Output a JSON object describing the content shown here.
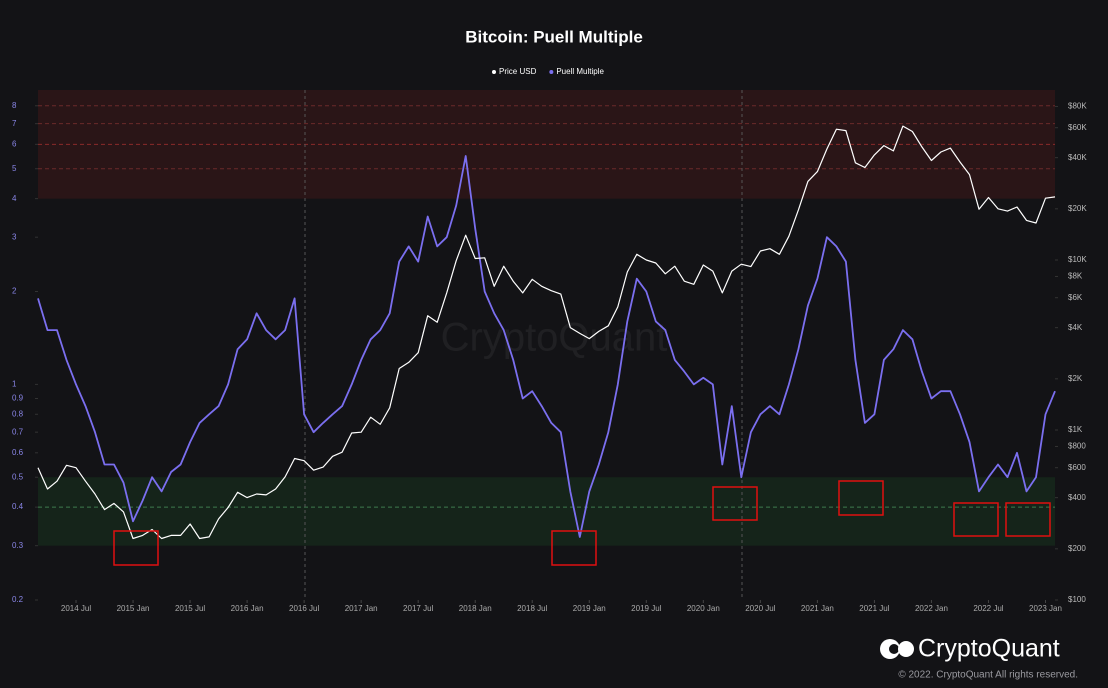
{
  "chart_data": {
    "type": "line",
    "title": "Bitcoin: Puell Multiple",
    "x": [
      "2014-03",
      "2014-04",
      "2014-05",
      "2014-06",
      "2014-07",
      "2014-08",
      "2014-09",
      "2014-10",
      "2014-11",
      "2014-12",
      "2015-01",
      "2015-02",
      "2015-03",
      "2015-04",
      "2015-05",
      "2015-06",
      "2015-07",
      "2015-08",
      "2015-09",
      "2015-10",
      "2015-11",
      "2015-12",
      "2016-01",
      "2016-02",
      "2016-03",
      "2016-04",
      "2016-05",
      "2016-06",
      "2016-07",
      "2016-08",
      "2016-09",
      "2016-10",
      "2016-11",
      "2016-12",
      "2017-01",
      "2017-02",
      "2017-03",
      "2017-04",
      "2017-05",
      "2017-06",
      "2017-07",
      "2017-08",
      "2017-09",
      "2017-10",
      "2017-11",
      "2017-12",
      "2018-01",
      "2018-02",
      "2018-03",
      "2018-04",
      "2018-05",
      "2018-06",
      "2018-07",
      "2018-08",
      "2018-09",
      "2018-10",
      "2018-11",
      "2018-12",
      "2019-01",
      "2019-02",
      "2019-03",
      "2019-04",
      "2019-05",
      "2019-06",
      "2019-07",
      "2019-08",
      "2019-09",
      "2019-10",
      "2019-11",
      "2019-12",
      "2020-01",
      "2020-02",
      "2020-03",
      "2020-04",
      "2020-05",
      "2020-06",
      "2020-07",
      "2020-08",
      "2020-09",
      "2020-10",
      "2020-11",
      "2020-12",
      "2021-01",
      "2021-02",
      "2021-03",
      "2021-04",
      "2021-05",
      "2021-06",
      "2021-07",
      "2021-08",
      "2021-09",
      "2021-10",
      "2021-11",
      "2021-12",
      "2022-01",
      "2022-02",
      "2022-03",
      "2022-04",
      "2022-05",
      "2022-06",
      "2022-07",
      "2022-08",
      "2022-09",
      "2022-10",
      "2022-11",
      "2022-12",
      "2023-01",
      "2023-02"
    ],
    "series": [
      {
        "name": "Price USD",
        "color": "#ffffff",
        "axis": "y2",
        "values": [
          600,
          450,
          500,
          620,
          600,
          500,
          420,
          340,
          370,
          330,
          230,
          240,
          260,
          230,
          240,
          240,
          280,
          230,
          235,
          300,
          350,
          430,
          400,
          420,
          415,
          450,
          530,
          680,
          660,
          580,
          605,
          700,
          740,
          960,
          970,
          1190,
          1080,
          1350,
          2300,
          2500,
          2850,
          4700,
          4300,
          6400,
          9900,
          14000,
          10200,
          10300,
          7000,
          9200,
          7500,
          6400,
          7700,
          7000,
          6600,
          6300,
          4000,
          3700,
          3450,
          3800,
          4100,
          5300,
          8500,
          10800,
          10000,
          9600,
          8300,
          9200,
          7500,
          7200,
          9350,
          8600,
          6400,
          8600,
          9450,
          9150,
          11300,
          11650,
          10800,
          13800,
          19700,
          29000,
          33100,
          45000,
          58800,
          57700,
          37300,
          35000,
          41500,
          47100,
          43800,
          61300,
          57000,
          46300,
          38500,
          43200,
          45500,
          37700,
          31800,
          19900,
          23300,
          20000,
          19400,
          20500,
          17100,
          16500,
          23100,
          23500
        ]
      },
      {
        "name": "Puell Multiple",
        "color": "#7b6ff0",
        "values": [
          1.9,
          1.5,
          1.5,
          1.2,
          1.0,
          0.85,
          0.7,
          0.55,
          0.55,
          0.48,
          0.36,
          0.42,
          0.5,
          0.45,
          0.52,
          0.55,
          0.65,
          0.75,
          0.8,
          0.85,
          1.0,
          1.3,
          1.4,
          1.7,
          1.5,
          1.4,
          1.5,
          1.9,
          0.8,
          0.7,
          0.75,
          0.8,
          0.85,
          1.0,
          1.2,
          1.4,
          1.5,
          1.7,
          2.5,
          2.8,
          2.5,
          3.5,
          2.8,
          3.0,
          3.8,
          5.5,
          3.2,
          2.0,
          1.7,
          1.5,
          1.2,
          0.9,
          0.95,
          0.85,
          0.75,
          0.7,
          0.45,
          0.32,
          0.45,
          0.55,
          0.7,
          1.0,
          1.6,
          2.2,
          2.0,
          1.6,
          1.5,
          1.2,
          1.1,
          1.0,
          1.05,
          1.0,
          0.55,
          0.85,
          0.5,
          0.7,
          0.8,
          0.85,
          0.8,
          1.0,
          1.3,
          1.8,
          2.2,
          3.0,
          2.8,
          2.5,
          1.2,
          0.75,
          0.8,
          1.2,
          1.3,
          1.5,
          1.4,
          1.1,
          0.9,
          0.95,
          0.95,
          0.8,
          0.65,
          0.45,
          0.5,
          0.55,
          0.5,
          0.6,
          0.45,
          0.5,
          0.8,
          0.95
        ]
      }
    ],
    "xlim": [
      "2014-03",
      "2023-02"
    ],
    "xticks": [
      {
        "value": "2014-07",
        "label": "2014 Jul"
      },
      {
        "value": "2015-01",
        "label": "2015 Jan"
      },
      {
        "value": "2015-07",
        "label": "2015 Jul"
      },
      {
        "value": "2016-01",
        "label": "2016 Jan"
      },
      {
        "value": "2016-07",
        "label": "2016 Jul"
      },
      {
        "value": "2017-01",
        "label": "2017 Jan"
      },
      {
        "value": "2017-07",
        "label": "2017 Jul"
      },
      {
        "value": "2018-01",
        "label": "2018 Jan"
      },
      {
        "value": "2018-07",
        "label": "2018 Jul"
      },
      {
        "value": "2019-01",
        "label": "2019 Jan"
      },
      {
        "value": "2019-07",
        "label": "2019 Jul"
      },
      {
        "value": "2020-01",
        "label": "2020 Jan"
      },
      {
        "value": "2020-07",
        "label": "2020 Jul"
      },
      {
        "value": "2021-01",
        "label": "2021 Jan"
      },
      {
        "value": "2021-07",
        "label": "2021 Jul"
      },
      {
        "value": "2022-01",
        "label": "2022 Jan"
      },
      {
        "value": "2022-07",
        "label": "2022 Jul"
      },
      {
        "value": "2023-01",
        "label": "2023 Jan"
      }
    ],
    "ylim": [
      0.2,
      9
    ],
    "y_log": true,
    "yticks": [
      0.2,
      0.3,
      0.4,
      0.5,
      0.6,
      0.7,
      0.8,
      0.9,
      1,
      2,
      3,
      4,
      5,
      6,
      7,
      8
    ],
    "y2lim": [
      100,
      100000
    ],
    "y2_log": true,
    "y2ticks": [
      {
        "value": 100,
        "label": "$100"
      },
      {
        "value": 200,
        "label": "$200"
      },
      {
        "value": 400,
        "label": "$400"
      },
      {
        "value": 600,
        "label": "$600"
      },
      {
        "value": 800,
        "label": "$800"
      },
      {
        "value": 1000,
        "label": "$1K"
      },
      {
        "value": 2000,
        "label": "$2K"
      },
      {
        "value": 4000,
        "label": "$4K"
      },
      {
        "value": 6000,
        "label": "$6K"
      },
      {
        "value": 8000,
        "label": "$8K"
      },
      {
        "value": 10000,
        "label": "$10K"
      },
      {
        "value": 20000,
        "label": "$20K"
      },
      {
        "value": 40000,
        "label": "$40K"
      },
      {
        "value": 60000,
        "label": "$60K"
      },
      {
        "value": 80000,
        "label": "$80K"
      }
    ],
    "zones": [
      {
        "from": 4,
        "to": 9,
        "color": "#2a1517"
      },
      {
        "from": 0.3,
        "to": 0.5,
        "color": "#15241a"
      }
    ],
    "reference_lines": [
      {
        "value": 0.4,
        "color": "#3d7a4d"
      },
      {
        "value": 5,
        "color": "#6a2a2a"
      },
      {
        "value": 6,
        "color": "#8a2a2a"
      },
      {
        "value": 7,
        "color": "#6a2a2a"
      },
      {
        "value": 8,
        "color": "#6a2a2a"
      }
    ],
    "legend": "top"
  },
  "watermark": "CryptoQuant",
  "branding": {
    "logo": "CryptoQuant",
    "copyright": "© 2022. CryptoQuant All rights reserved."
  }
}
